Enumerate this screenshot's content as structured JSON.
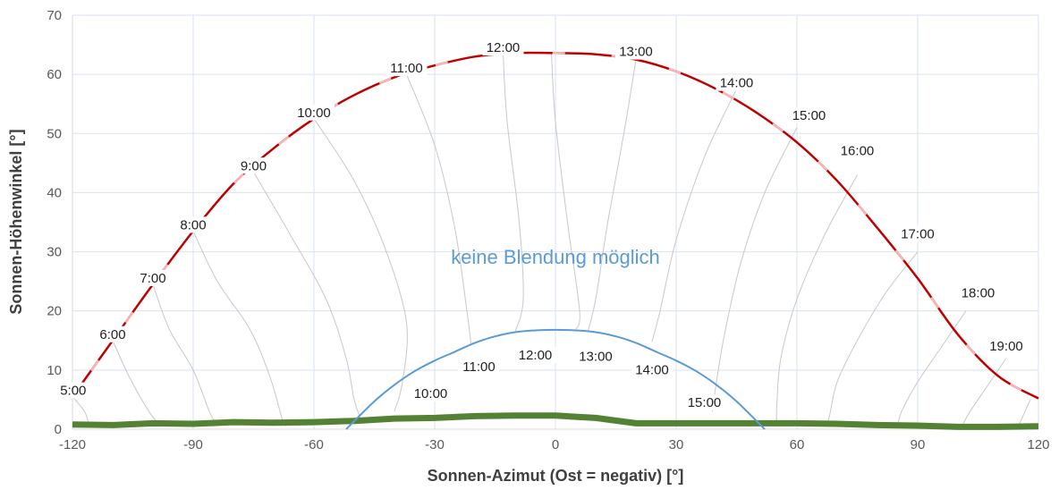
{
  "chart_data": {
    "type": "line",
    "xlabel": "Sonnen-Azimut (Ost = negativ) [°]",
    "ylabel": "Sonnen-Höhenwinkel [°]",
    "xlim": [
      -120,
      120
    ],
    "ylim": [
      0,
      70
    ],
    "x_ticks": [
      "-120",
      "-90",
      "-60",
      "-30",
      "0",
      "30",
      "60",
      "90",
      "120"
    ],
    "y_ticks": [
      "0",
      "10",
      "20",
      "30",
      "40",
      "50",
      "60",
      "70"
    ],
    "grid": true,
    "annotation": {
      "text": "keine Blendung möglich",
      "x": 0,
      "y": 28,
      "color": "#5b9bd5"
    },
    "colors": {
      "summer": "#c00000",
      "summer_highlight": "#f4b6b6",
      "winter": "#5b9bd5",
      "horizon": "#548235",
      "analemma": "#c8c8c8",
      "grid": "#d9e2f0",
      "axis": "#d9d9d9"
    },
    "series": [
      {
        "x": [
          -120,
          -110,
          -100,
          -90,
          -80,
          -70,
          -60,
          -50,
          -40,
          -30,
          -20,
          -10,
          0,
          10,
          20,
          30,
          40,
          50,
          60,
          70,
          80,
          90,
          100,
          110,
          120
        ],
        "y": [
          5.5,
          15,
          24.5,
          33.5,
          41.5,
          47.5,
          52.5,
          56.5,
          59.5,
          61.5,
          63,
          63.6,
          63.6,
          63.4,
          62.5,
          60.5,
          57.5,
          53.5,
          48.5,
          42,
          34,
          25.5,
          16,
          9,
          5.2
        ]
      },
      {
        "x": [
          -52,
          -45,
          -40,
          -35,
          -30,
          -25,
          -20,
          -15,
          -10,
          -5,
          0,
          5,
          10,
          15,
          20,
          25,
          30,
          35,
          40,
          45,
          52
        ],
        "y": [
          0,
          4.7,
          7.5,
          9.8,
          11.6,
          13.1,
          14.6,
          15.7,
          16.4,
          16.7,
          16.8,
          16.7,
          16.4,
          15.7,
          14.6,
          13.1,
          11.6,
          9.8,
          7.5,
          4.7,
          0
        ]
      },
      {
        "x": [
          -120,
          -110,
          -100,
          -90,
          -80,
          -70,
          -60,
          -50,
          -40,
          -30,
          -20,
          -10,
          0,
          10,
          20,
          30,
          40,
          50,
          60,
          70,
          80,
          90,
          100,
          110,
          120
        ],
        "y": [
          0.8,
          0.7,
          1.0,
          0.9,
          1.2,
          1.1,
          1.2,
          1.4,
          1.8,
          1.9,
          2.2,
          2.3,
          2.3,
          1.9,
          1.0,
          1.0,
          1.0,
          1.0,
          1.0,
          0.9,
          0.7,
          0.6,
          0.4,
          0.4,
          0.5
        ]
      }
    ],
    "summer_hour_labels": [
      {
        "text": "5:00",
        "x": -120,
        "y": 5.5
      },
      {
        "text": "6:00",
        "x": -110,
        "y": 15
      },
      {
        "text": "7:00",
        "x": -100,
        "y": 24.5
      },
      {
        "text": "8:00",
        "x": -90,
        "y": 33.5
      },
      {
        "text": "9:00",
        "x": -75,
        "y": 43.5
      },
      {
        "text": "10:00",
        "x": -60,
        "y": 52.5
      },
      {
        "text": "11:00",
        "x": -37,
        "y": 60
      },
      {
        "text": "12:00",
        "x": -13,
        "y": 63.5
      },
      {
        "text": "13:00",
        "x": 20,
        "y": 62.8
      },
      {
        "text": "14:00",
        "x": 45,
        "y": 57.5
      },
      {
        "text": "15:00",
        "x": 63,
        "y": 52
      },
      {
        "text": "16:00",
        "x": 75,
        "y": 46
      },
      {
        "text": "17:00",
        "x": 90,
        "y": 32
      },
      {
        "text": "18:00",
        "x": 105,
        "y": 22
      },
      {
        "text": "19:00",
        "x": 112,
        "y": 13
      }
    ],
    "winter_hour_labels": [
      {
        "text": "10:00",
        "x": -31,
        "y": 5
      },
      {
        "text": "11:00",
        "x": -19,
        "y": 9.5
      },
      {
        "text": "12:00",
        "x": -5,
        "y": 11.5
      },
      {
        "text": "13:00",
        "x": 10,
        "y": 11.3
      },
      {
        "text": "14:00",
        "x": 24,
        "y": 9
      },
      {
        "text": "15:00",
        "x": 37,
        "y": 3.5
      }
    ],
    "analemmas": [
      [
        [
          -120,
          5.5
        ],
        [
          -117,
          3
        ],
        [
          -116,
          1
        ]
      ],
      [
        [
          -110,
          15
        ],
        [
          -106,
          9
        ],
        [
          -101,
          3
        ],
        [
          -98,
          0.5
        ]
      ],
      [
        [
          -100,
          24.5
        ],
        [
          -96,
          17
        ],
        [
          -90,
          10
        ],
        [
          -86,
          3
        ],
        [
          -84,
          0.5
        ]
      ],
      [
        [
          -90,
          33.5
        ],
        [
          -84,
          25
        ],
        [
          -76,
          17
        ],
        [
          -71,
          9
        ],
        [
          -68,
          2
        ],
        [
          -67,
          0.5
        ]
      ],
      [
        [
          -75,
          43.5
        ],
        [
          -66,
          33
        ],
        [
          -57,
          22
        ],
        [
          -52,
          12
        ],
        [
          -50,
          5
        ],
        [
          -48,
          1
        ]
      ],
      [
        [
          -60,
          52.5
        ],
        [
          -50,
          42
        ],
        [
          -42,
          30
        ],
        [
          -37,
          18
        ],
        [
          -38,
          8
        ],
        [
          -40,
          3
        ]
      ],
      [
        [
          -37,
          60
        ],
        [
          -30,
          48
        ],
        [
          -25,
          34
        ],
        [
          -22,
          20
        ],
        [
          -21,
          14.5
        ]
      ],
      [
        [
          -13,
          63.5
        ],
        [
          -12,
          52
        ],
        [
          -9,
          35
        ],
        [
          -8,
          22
        ],
        [
          -10,
          16.5
        ]
      ],
      [
        [
          -1,
          63.6
        ],
        [
          0,
          52
        ],
        [
          3,
          35
        ],
        [
          6,
          20
        ],
        [
          5,
          16.8
        ]
      ],
      [
        [
          20,
          62.5
        ],
        [
          17,
          50
        ],
        [
          13,
          35
        ],
        [
          10,
          22
        ],
        [
          8,
          16.4
        ]
      ],
      [
        [
          45,
          57.5
        ],
        [
          37,
          46
        ],
        [
          30,
          32
        ],
        [
          26,
          20
        ],
        [
          24,
          14.8
        ]
      ],
      [
        [
          60,
          51
        ],
        [
          52,
          40
        ],
        [
          46,
          28
        ],
        [
          42,
          16
        ],
        [
          40,
          8
        ],
        [
          39,
          3
        ]
      ],
      [
        [
          75,
          43
        ],
        [
          67,
          33
        ],
        [
          60,
          22
        ],
        [
          56,
          12
        ],
        [
          55,
          4
        ],
        [
          55,
          1
        ]
      ],
      [
        [
          90,
          30
        ],
        [
          82,
          23
        ],
        [
          75,
          15
        ],
        [
          70,
          8
        ],
        [
          68,
          2
        ],
        [
          67,
          0.5
        ]
      ],
      [
        [
          102,
          20
        ],
        [
          96,
          14
        ],
        [
          90,
          8
        ],
        [
          86,
          3
        ],
        [
          85,
          0.5
        ]
      ],
      [
        [
          112,
          12
        ],
        [
          108,
          8
        ],
        [
          103,
          3
        ],
        [
          101,
          0.5
        ]
      ],
      [
        [
          118,
          5
        ],
        [
          116,
          2
        ],
        [
          115,
          0.5
        ]
      ]
    ]
  }
}
